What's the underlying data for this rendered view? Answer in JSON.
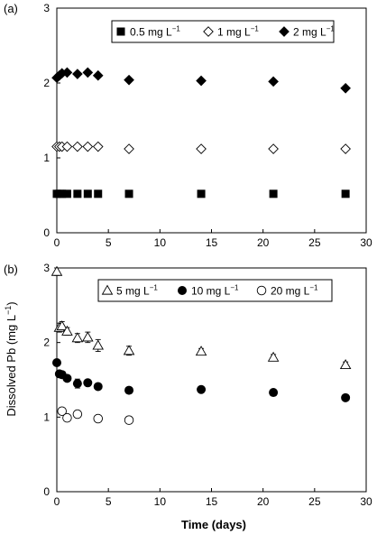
{
  "figure": {
    "ylabel": "Dissolved Pb (mg L",
    "ylabel_sup": "−1",
    "ylabel_close": ")",
    "xlabel": "Time (days)"
  },
  "chart_data": [
    {
      "type": "scatter",
      "panel_label": "(a)",
      "xlim": [
        0,
        30
      ],
      "ylim": [
        0,
        3
      ],
      "xticks": [
        "0",
        "5",
        "10",
        "15",
        "20",
        "25",
        "30"
      ],
      "yticks": [
        "0",
        "1",
        "2",
        "3"
      ],
      "grid": false,
      "legend_position": "top-right",
      "series": [
        {
          "name": "0.5 mg L",
          "name_sup": "−1",
          "marker": "square-filled",
          "color": "#000000",
          "x": [
            0,
            0.25,
            0.5,
            1,
            2,
            3,
            4,
            7,
            14,
            21,
            28
          ],
          "y": [
            0.52,
            0.52,
            0.52,
            0.52,
            0.52,
            0.52,
            0.52,
            0.52,
            0.52,
            0.52,
            0.52
          ]
        },
        {
          "name": "1 mg L",
          "name_sup": "−1",
          "marker": "diamond-open",
          "color": "#000000",
          "x": [
            0,
            0.25,
            0.5,
            1,
            2,
            3,
            4,
            7,
            14,
            21,
            28
          ],
          "y": [
            1.15,
            1.15,
            1.15,
            1.15,
            1.15,
            1.15,
            1.15,
            1.12,
            1.12,
            1.12,
            1.12
          ]
        },
        {
          "name": "2 mg L",
          "name_sup": "−1",
          "marker": "diamond-filled",
          "color": "#000000",
          "x": [
            0,
            0.25,
            0.5,
            1,
            2,
            3,
            4,
            7,
            14,
            21,
            28
          ],
          "y": [
            2.07,
            2.1,
            2.13,
            2.14,
            2.12,
            2.14,
            2.1,
            2.04,
            2.03,
            2.02,
            1.93
          ]
        }
      ]
    },
    {
      "type": "scatter",
      "panel_label": "(b)",
      "xlim": [
        0,
        30
      ],
      "ylim": [
        0,
        3
      ],
      "xticks": [
        "0",
        "5",
        "10",
        "15",
        "20",
        "25",
        "30"
      ],
      "yticks": [
        "0",
        "1",
        "2",
        "3"
      ],
      "grid": false,
      "legend_position": "top-right",
      "series": [
        {
          "name": "5 mg L",
          "name_sup": "−1",
          "marker": "triangle-open",
          "color": "#000000",
          "x": [
            0,
            0.25,
            0.5,
            1,
            2,
            3,
            4,
            7,
            14,
            21,
            28
          ],
          "y": [
            2.95,
            2.2,
            2.22,
            2.15,
            2.06,
            2.07,
            1.96,
            1.89,
            1.88,
            1.8,
            1.7
          ],
          "err": [
            0.05,
            0.06,
            0.06,
            0.05,
            0.06,
            0.07,
            0.08,
            0.06,
            0.04,
            0.04,
            0.04
          ]
        },
        {
          "name": "10 mg L",
          "name_sup": "−1",
          "marker": "circle-filled",
          "color": "#000000",
          "x": [
            0,
            0.25,
            0.5,
            1,
            2,
            3,
            4,
            7,
            14,
            21,
            28
          ],
          "y": [
            1.73,
            1.58,
            1.57,
            1.52,
            1.45,
            1.46,
            1.41,
            1.36,
            1.37,
            1.33,
            1.26
          ],
          "err": [
            0,
            0.02,
            0.02,
            0.02,
            0.06,
            0.03,
            0.03,
            0.02,
            0.02,
            0.02,
            0.02
          ]
        },
        {
          "name": "20 mg L",
          "name_sup": "−1",
          "marker": "circle-open",
          "color": "#000000",
          "x": [
            0.5,
            1,
            2,
            4,
            7
          ],
          "y": [
            1.08,
            0.99,
            1.04,
            0.98,
            0.96
          ],
          "err": [
            0.04,
            0.03,
            0.04,
            0.03,
            0.03
          ]
        }
      ]
    }
  ]
}
